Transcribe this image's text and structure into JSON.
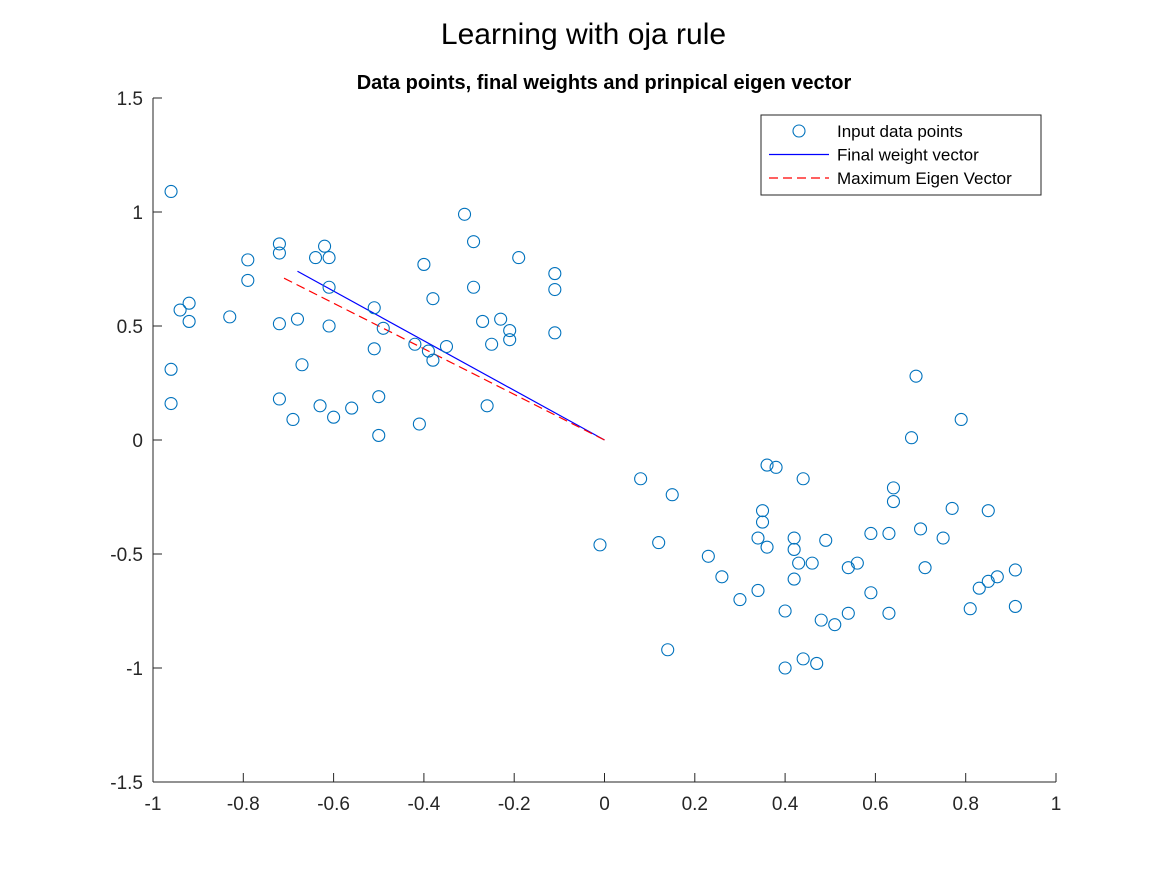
{
  "figure_title": "Learning with oja rule",
  "chart_data": {
    "type": "scatter",
    "title": "Data points, final weights and prinpical eigen vector",
    "xlabel": "",
    "ylabel": "",
    "xlim": [
      -1,
      1
    ],
    "ylim": [
      -1.5,
      1.5
    ],
    "x_ticks": [
      -1,
      -0.8,
      -0.6,
      -0.4,
      -0.2,
      0,
      0.2,
      0.4,
      0.6,
      0.8,
      1
    ],
    "x_tick_labels": [
      "-1",
      "-0.8",
      "-0.6",
      "-0.4",
      "-0.2",
      "0",
      "0.2",
      "0.4",
      "0.6",
      "0.8",
      "1"
    ],
    "y_ticks": [
      -1.5,
      -1,
      -0.5,
      0,
      0.5,
      1,
      1.5
    ],
    "y_tick_labels": [
      "-1.5",
      "-1",
      "-0.5",
      "0",
      "0.5",
      "1",
      "1.5"
    ],
    "grid": false,
    "legend_position": "top-right",
    "colors": {
      "points": "#0072BD",
      "weight": "#0000FF",
      "eigen": "#FF0000"
    },
    "series": [
      {
        "name": "Input data points",
        "kind": "scatter",
        "marker": "circle",
        "points": [
          [
            -0.96,
            1.09
          ],
          [
            -0.96,
            0.31
          ],
          [
            -0.96,
            0.16
          ],
          [
            -0.94,
            0.57
          ],
          [
            -0.92,
            0.6
          ],
          [
            -0.92,
            0.52
          ],
          [
            -0.83,
            0.54
          ],
          [
            -0.79,
            0.79
          ],
          [
            -0.79,
            0.7
          ],
          [
            -0.72,
            0.86
          ],
          [
            -0.72,
            0.82
          ],
          [
            -0.72,
            0.51
          ],
          [
            -0.72,
            0.18
          ],
          [
            -0.69,
            0.09
          ],
          [
            -0.68,
            0.53
          ],
          [
            -0.67,
            0.33
          ],
          [
            -0.64,
            0.8
          ],
          [
            -0.62,
            0.85
          ],
          [
            -0.61,
            0.8
          ],
          [
            -0.61,
            0.67
          ],
          [
            -0.61,
            0.5
          ],
          [
            -0.6,
            0.1
          ],
          [
            -0.63,
            0.15
          ],
          [
            -0.56,
            0.14
          ],
          [
            -0.51,
            0.58
          ],
          [
            -0.51,
            0.4
          ],
          [
            -0.5,
            0.19
          ],
          [
            -0.5,
            0.02
          ],
          [
            -0.49,
            0.49
          ],
          [
            -0.42,
            0.42
          ],
          [
            -0.41,
            0.07
          ],
          [
            -0.4,
            0.77
          ],
          [
            -0.39,
            0.39
          ],
          [
            -0.38,
            0.62
          ],
          [
            -0.38,
            0.35
          ],
          [
            -0.35,
            0.41
          ],
          [
            -0.31,
            0.99
          ],
          [
            -0.29,
            0.87
          ],
          [
            -0.29,
            0.67
          ],
          [
            -0.27,
            0.52
          ],
          [
            -0.26,
            0.15
          ],
          [
            -0.25,
            0.42
          ],
          [
            -0.23,
            0.53
          ],
          [
            -0.21,
            0.48
          ],
          [
            -0.21,
            0.44
          ],
          [
            -0.19,
            0.8
          ],
          [
            -0.11,
            0.73
          ],
          [
            -0.11,
            0.66
          ],
          [
            -0.11,
            0.47
          ],
          [
            -0.01,
            -0.46
          ],
          [
            0.08,
            -0.17
          ],
          [
            0.12,
            -0.45
          ],
          [
            0.14,
            -0.92
          ],
          [
            0.15,
            -0.24
          ],
          [
            0.23,
            -0.51
          ],
          [
            0.26,
            -0.6
          ],
          [
            0.3,
            -0.7
          ],
          [
            0.34,
            -0.66
          ],
          [
            0.34,
            -0.43
          ],
          [
            0.35,
            -0.36
          ],
          [
            0.35,
            -0.31
          ],
          [
            0.36,
            -0.47
          ],
          [
            0.36,
            -0.11
          ],
          [
            0.38,
            -0.12
          ],
          [
            0.4,
            -1.0
          ],
          [
            0.4,
            -0.75
          ],
          [
            0.42,
            -0.61
          ],
          [
            0.42,
            -0.43
          ],
          [
            0.42,
            -0.48
          ],
          [
            0.43,
            -0.54
          ],
          [
            0.44,
            -0.96
          ],
          [
            0.44,
            -0.17
          ],
          [
            0.46,
            -0.54
          ],
          [
            0.47,
            -0.98
          ],
          [
            0.48,
            -0.79
          ],
          [
            0.49,
            -0.44
          ],
          [
            0.51,
            -0.81
          ],
          [
            0.54,
            -0.76
          ],
          [
            0.54,
            -0.56
          ],
          [
            0.56,
            -0.54
          ],
          [
            0.59,
            -0.67
          ],
          [
            0.59,
            -0.41
          ],
          [
            0.63,
            -0.76
          ],
          [
            0.63,
            -0.41
          ],
          [
            0.64,
            -0.27
          ],
          [
            0.64,
            -0.21
          ],
          [
            0.68,
            0.01
          ],
          [
            0.69,
            0.28
          ],
          [
            0.7,
            -0.39
          ],
          [
            0.71,
            -0.56
          ],
          [
            0.75,
            -0.43
          ],
          [
            0.77,
            -0.3
          ],
          [
            0.79,
            0.09
          ],
          [
            0.81,
            -0.74
          ],
          [
            0.83,
            -0.65
          ],
          [
            0.85,
            -0.31
          ],
          [
            0.85,
            -0.62
          ],
          [
            0.87,
            -0.6
          ],
          [
            0.91,
            -0.57
          ],
          [
            0.91,
            -0.73
          ]
        ]
      },
      {
        "name": "Final weight vector",
        "kind": "line",
        "style": "solid",
        "points": [
          [
            0,
            0
          ],
          [
            -0.68,
            0.74
          ]
        ]
      },
      {
        "name": "Maximum Eigen Vector",
        "kind": "line",
        "style": "dashed",
        "points": [
          [
            0,
            0
          ],
          [
            -0.71,
            0.71
          ]
        ]
      }
    ]
  }
}
